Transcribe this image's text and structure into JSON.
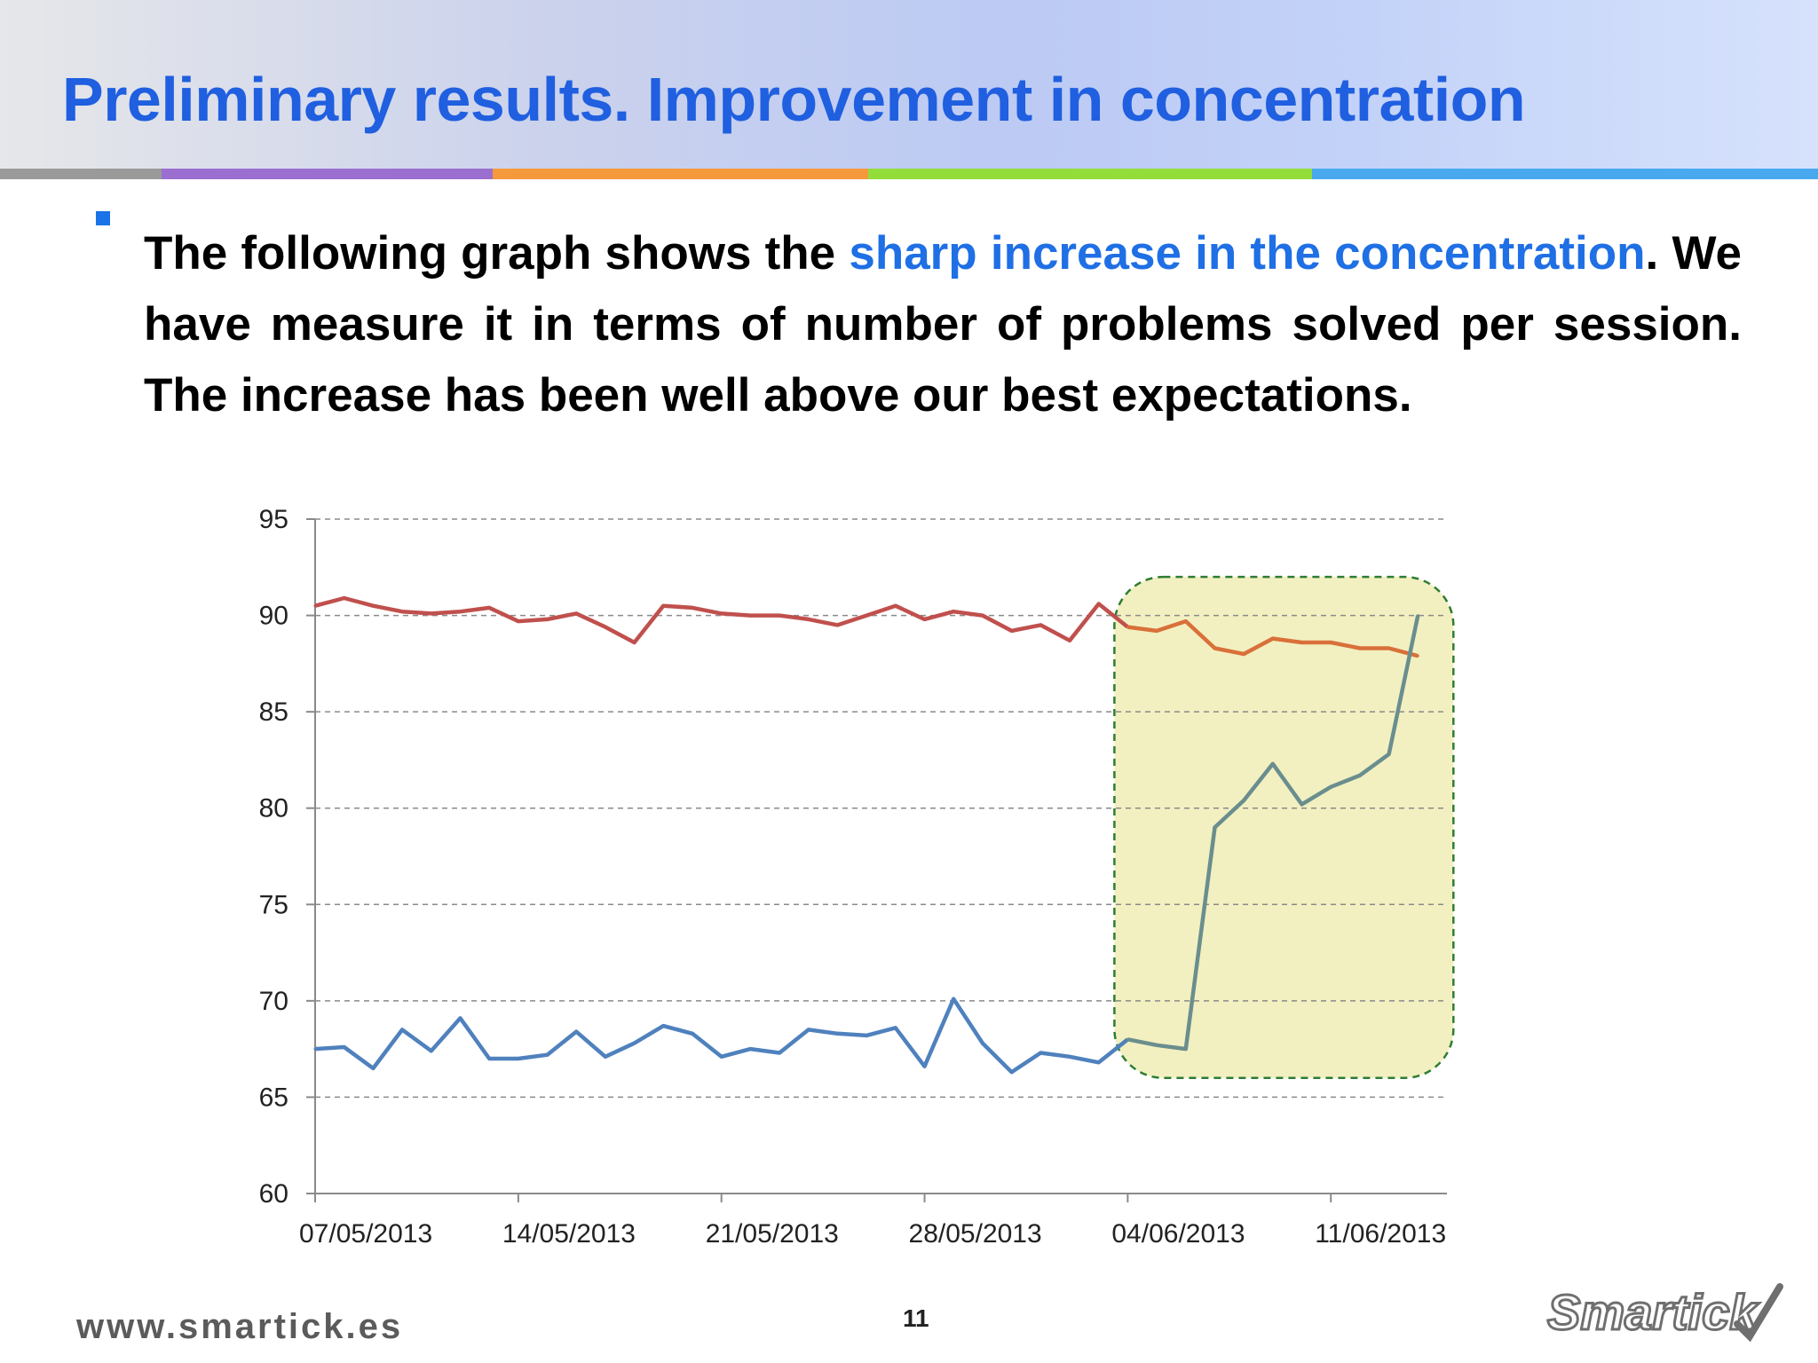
{
  "slide": {
    "title": "Preliminary results. Improvement in concentration",
    "bullet": {
      "before": "The following graph shows the ",
      "highlight": "sharp increase in the concentration",
      "after": ". We have measure it in terms of number of problems solved per session. The increase has been well above our best expectations."
    },
    "footer_url": "www.smartick.es",
    "page_number": "11",
    "logo_text": "Smartick",
    "colors": {
      "title": "#1f5fe0",
      "highlight": "#1f6fe5",
      "bullet_marker": "#1a73e8",
      "strip": [
        "#9a9a9a",
        "#9b6fd0",
        "#f59a3c",
        "#93dd3a",
        "#48a9ef"
      ]
    }
  },
  "chart_data": {
    "type": "line",
    "ylim": [
      60,
      95
    ],
    "yticks": [
      60,
      65,
      70,
      75,
      80,
      85,
      90,
      95
    ],
    "xlim": [
      "07/05/2013",
      "15/06/2013"
    ],
    "xtick_labels": [
      "07/05/2013",
      "14/05/2013",
      "21/05/2013",
      "28/05/2013",
      "04/06/2013",
      "11/06/2013"
    ],
    "grid": "horizontal dashed",
    "series": [
      {
        "color": "#c0504d",
        "highlight_color": "#d9703a",
        "points": [
          [
            "07/05/2013",
            90.5
          ],
          [
            "08/05/2013",
            90.9
          ],
          [
            "09/05/2013",
            90.5
          ],
          [
            "10/05/2013",
            90.2
          ],
          [
            "11/05/2013",
            90.1
          ],
          [
            "12/05/2013",
            90.2
          ],
          [
            "13/05/2013",
            90.4
          ],
          [
            "14/05/2013",
            89.7
          ],
          [
            "15/05/2013",
            89.8
          ],
          [
            "16/05/2013",
            90.1
          ],
          [
            "17/05/2013",
            89.4
          ],
          [
            "18/05/2013",
            88.6
          ],
          [
            "19/05/2013",
            90.5
          ],
          [
            "20/05/2013",
            90.4
          ],
          [
            "21/05/2013",
            90.1
          ],
          [
            "22/05/2013",
            90.0
          ],
          [
            "23/05/2013",
            90.0
          ],
          [
            "24/05/2013",
            89.8
          ],
          [
            "25/05/2013",
            89.5
          ],
          [
            "26/05/2013",
            90.0
          ],
          [
            "27/05/2013",
            90.5
          ],
          [
            "28/05/2013",
            89.8
          ],
          [
            "29/05/2013",
            90.2
          ],
          [
            "30/05/2013",
            90.0
          ],
          [
            "31/05/2013",
            89.2
          ],
          [
            "01/06/2013",
            89.5
          ],
          [
            "02/06/2013",
            88.7
          ],
          [
            "03/06/2013",
            90.6
          ],
          [
            "04/06/2013",
            89.4
          ],
          [
            "05/06/2013",
            89.2
          ],
          [
            "06/06/2013",
            89.7
          ],
          [
            "07/06/2013",
            88.3
          ],
          [
            "08/06/2013",
            88.0
          ],
          [
            "09/06/2013",
            88.8
          ],
          [
            "10/06/2013",
            88.6
          ],
          [
            "11/06/2013",
            88.6
          ],
          [
            "12/06/2013",
            88.3
          ],
          [
            "13/06/2013",
            88.3
          ],
          [
            "14/06/2013",
            87.9
          ]
        ]
      },
      {
        "color": "#4f81bd",
        "highlight_color": "#6a8e8e",
        "points": [
          [
            "07/05/2013",
            67.5
          ],
          [
            "08/05/2013",
            67.6
          ],
          [
            "09/05/2013",
            66.5
          ],
          [
            "10/05/2013",
            68.5
          ],
          [
            "11/05/2013",
            67.4
          ],
          [
            "12/05/2013",
            69.1
          ],
          [
            "13/05/2013",
            67.0
          ],
          [
            "14/05/2013",
            67.0
          ],
          [
            "15/05/2013",
            67.2
          ],
          [
            "16/05/2013",
            68.4
          ],
          [
            "17/05/2013",
            67.1
          ],
          [
            "18/05/2013",
            67.8
          ],
          [
            "19/05/2013",
            68.7
          ],
          [
            "20/05/2013",
            68.3
          ],
          [
            "21/05/2013",
            67.1
          ],
          [
            "22/05/2013",
            67.5
          ],
          [
            "23/05/2013",
            67.3
          ],
          [
            "24/05/2013",
            68.5
          ],
          [
            "25/05/2013",
            68.3
          ],
          [
            "26/05/2013",
            68.2
          ],
          [
            "27/05/2013",
            68.6
          ],
          [
            "28/05/2013",
            66.6
          ],
          [
            "29/05/2013",
            70.1
          ],
          [
            "30/05/2013",
            67.8
          ],
          [
            "31/05/2013",
            66.3
          ],
          [
            "01/06/2013",
            67.3
          ],
          [
            "02/06/2013",
            67.1
          ],
          [
            "03/06/2013",
            66.8
          ],
          [
            "04/06/2013",
            68.0
          ],
          [
            "05/06/2013",
            67.7
          ],
          [
            "06/06/2013",
            67.5
          ],
          [
            "07/06/2013",
            79.0
          ],
          [
            "08/06/2013",
            80.4
          ],
          [
            "09/06/2013",
            82.3
          ],
          [
            "10/06/2013",
            80.2
          ],
          [
            "11/06/2013",
            81.1
          ],
          [
            "12/06/2013",
            81.7
          ],
          [
            "13/06/2013",
            82.8
          ],
          [
            "14/06/2013",
            90.0
          ]
        ]
      }
    ],
    "highlight_region": {
      "x_range": [
        "04/06/2013",
        "14/06/2013"
      ],
      "y_range": [
        66,
        92
      ],
      "fill": "#f2f0c0",
      "border": "#2e7d32"
    }
  }
}
